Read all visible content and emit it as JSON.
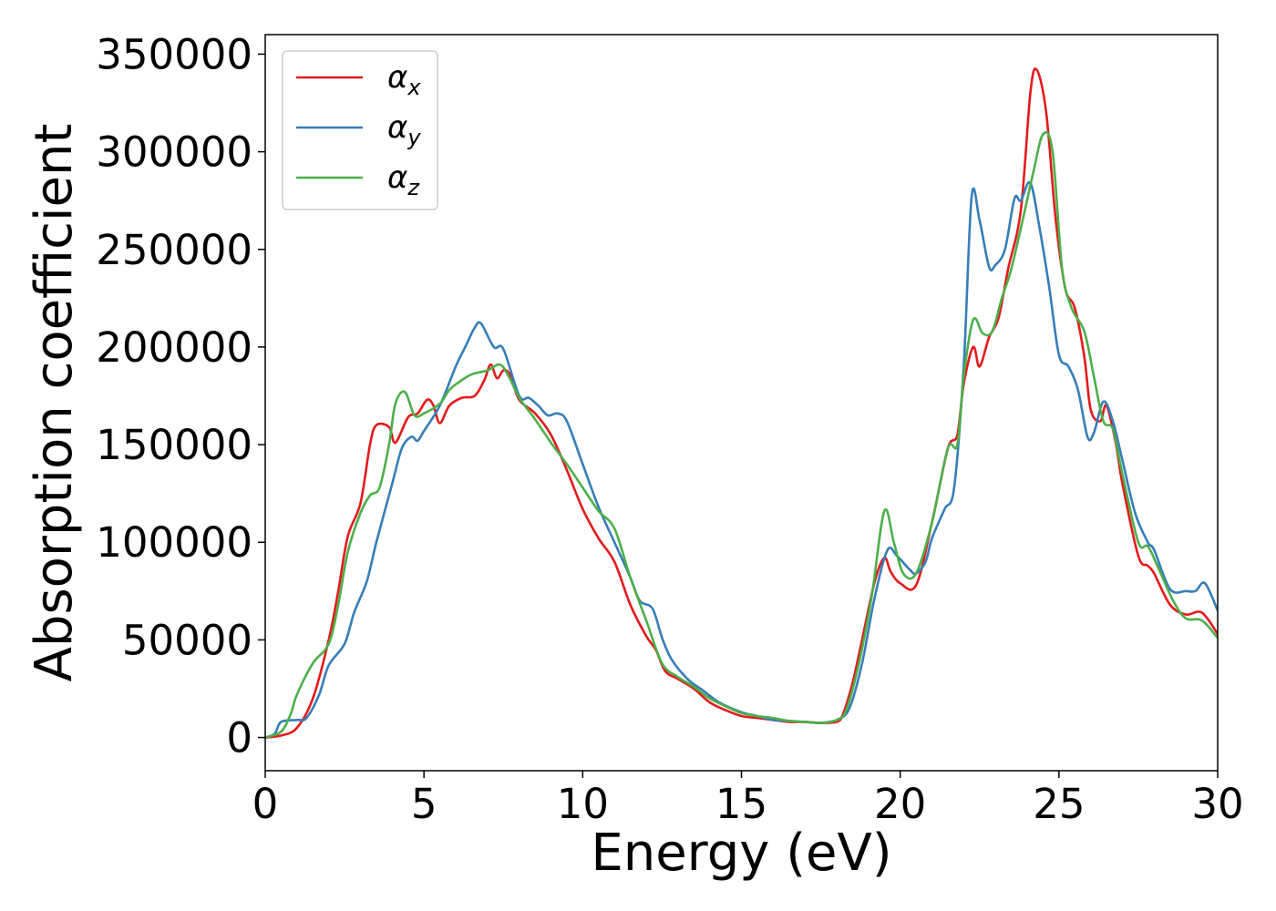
{
  "chart_data": {
    "type": "line",
    "title": "",
    "xlabel": "Energy (eV)",
    "ylabel": "Absorption coefficient",
    "xlim": [
      0,
      30
    ],
    "ylim": [
      -17000,
      360000
    ],
    "xticks": [
      0,
      5,
      10,
      15,
      20,
      25,
      30
    ],
    "yticks": [
      0,
      50000,
      100000,
      150000,
      200000,
      250000,
      300000,
      350000
    ],
    "grid": false,
    "legend_position": "top-left",
    "series": [
      {
        "name": "α",
        "subscript": "x",
        "color": "#e41a1c",
        "points": [
          [
            0,
            0
          ],
          [
            0.5,
            1000
          ],
          [
            1,
            5000
          ],
          [
            1.5,
            20000
          ],
          [
            2,
            50000
          ],
          [
            2.3,
            75000
          ],
          [
            2.6,
            103000
          ],
          [
            3,
            120000
          ],
          [
            3.3,
            150000
          ],
          [
            3.5,
            160000
          ],
          [
            3.9,
            159000
          ],
          [
            4.1,
            151000
          ],
          [
            4.5,
            164000
          ],
          [
            4.8,
            166000
          ],
          [
            5.1,
            173000
          ],
          [
            5.3,
            170000
          ],
          [
            5.5,
            161000
          ],
          [
            5.8,
            170000
          ],
          [
            6.2,
            174000
          ],
          [
            6.6,
            175000
          ],
          [
            6.9,
            183000
          ],
          [
            7.1,
            191000
          ],
          [
            7.3,
            184000
          ],
          [
            7.5,
            188000
          ],
          [
            7.7,
            186000
          ],
          [
            8,
            173000
          ],
          [
            8.5,
            166000
          ],
          [
            9,
            155000
          ],
          [
            9.5,
            137000
          ],
          [
            10,
            117000
          ],
          [
            10.5,
            102000
          ],
          [
            11,
            90000
          ],
          [
            11.5,
            68000
          ],
          [
            12,
            52000
          ],
          [
            12.3,
            45000
          ],
          [
            12.6,
            34000
          ],
          [
            13,
            30000
          ],
          [
            13.5,
            25000
          ],
          [
            14,
            18000
          ],
          [
            14.5,
            14000
          ],
          [
            15,
            11000
          ],
          [
            15.5,
            10000
          ],
          [
            16,
            9000
          ],
          [
            16.5,
            8000
          ],
          [
            17,
            8000
          ],
          [
            17.5,
            7500
          ],
          [
            18,
            8000
          ],
          [
            18.2,
            12000
          ],
          [
            18.5,
            28000
          ],
          [
            18.8,
            50000
          ],
          [
            19.2,
            80000
          ],
          [
            19.5,
            92000
          ],
          [
            19.7,
            85000
          ],
          [
            20,
            79000
          ],
          [
            20.5,
            78000
          ],
          [
            21,
            110000
          ],
          [
            21.5,
            148000
          ],
          [
            21.8,
            155000
          ],
          [
            22,
            181000
          ],
          [
            22.3,
            200000
          ],
          [
            22.5,
            190000
          ],
          [
            22.8,
            205000
          ],
          [
            23.1,
            215000
          ],
          [
            23.4,
            240000
          ],
          [
            23.8,
            270000
          ],
          [
            24.1,
            330000
          ],
          [
            24.3,
            342000
          ],
          [
            24.6,
            320000
          ],
          [
            24.9,
            265000
          ],
          [
            25.2,
            230000
          ],
          [
            25.5,
            220000
          ],
          [
            25.8,
            195000
          ],
          [
            26,
            168000
          ],
          [
            26.3,
            162000
          ],
          [
            26.5,
            170000
          ],
          [
            26.8,
            150000
          ],
          [
            27,
            130000
          ],
          [
            27.5,
            93000
          ],
          [
            27.8,
            88000
          ],
          [
            28,
            84000
          ],
          [
            28.5,
            68000
          ],
          [
            29,
            63000
          ],
          [
            29.5,
            64000
          ],
          [
            30,
            53000
          ]
        ]
      },
      {
        "name": "α",
        "subscript": "y",
        "color": "#377eb8",
        "points": [
          [
            0,
            0
          ],
          [
            0.3,
            2000
          ],
          [
            0.5,
            8000
          ],
          [
            1,
            9000
          ],
          [
            1.3,
            10000
          ],
          [
            1.7,
            22000
          ],
          [
            2,
            37000
          ],
          [
            2.5,
            48000
          ],
          [
            2.8,
            64000
          ],
          [
            3.2,
            80000
          ],
          [
            3.5,
            100000
          ],
          [
            4,
            130000
          ],
          [
            4.3,
            148000
          ],
          [
            4.6,
            154000
          ],
          [
            4.8,
            152000
          ],
          [
            5,
            157000
          ],
          [
            5.5,
            170000
          ],
          [
            6,
            190000
          ],
          [
            6.3,
            200000
          ],
          [
            6.6,
            210000
          ],
          [
            6.8,
            212000
          ],
          [
            7.2,
            200000
          ],
          [
            7.5,
            199000
          ],
          [
            8,
            175000
          ],
          [
            8.3,
            174000
          ],
          [
            8.6,
            170000
          ],
          [
            8.9,
            165000
          ],
          [
            9.2,
            166000
          ],
          [
            9.5,
            162000
          ],
          [
            10,
            140000
          ],
          [
            10.5,
            118000
          ],
          [
            11,
            100000
          ],
          [
            11.5,
            82000
          ],
          [
            11.8,
            70000
          ],
          [
            12.2,
            66000
          ],
          [
            12.5,
            51000
          ],
          [
            12.8,
            40000
          ],
          [
            13.3,
            30000
          ],
          [
            13.8,
            24000
          ],
          [
            14.3,
            18000
          ],
          [
            15,
            13000
          ],
          [
            15.5,
            11000
          ],
          [
            16,
            9000
          ],
          [
            16.5,
            8500
          ],
          [
            17,
            8000
          ],
          [
            17.5,
            7500
          ],
          [
            18,
            9000
          ],
          [
            18.4,
            15000
          ],
          [
            18.8,
            38000
          ],
          [
            19.2,
            72000
          ],
          [
            19.6,
            96000
          ],
          [
            19.9,
            93000
          ],
          [
            20.3,
            86000
          ],
          [
            20.5,
            84000
          ],
          [
            20.8,
            90000
          ],
          [
            21,
            102000
          ],
          [
            21.4,
            117000
          ],
          [
            21.7,
            128000
          ],
          [
            22,
            190000
          ],
          [
            22.25,
            277000
          ],
          [
            22.5,
            265000
          ],
          [
            22.8,
            241000
          ],
          [
            23,
            242000
          ],
          [
            23.3,
            250000
          ],
          [
            23.6,
            276000
          ],
          [
            23.8,
            275000
          ],
          [
            24.1,
            284000
          ],
          [
            24.4,
            260000
          ],
          [
            24.7,
            230000
          ],
          [
            25,
            196000
          ],
          [
            25.3,
            190000
          ],
          [
            25.6,
            178000
          ],
          [
            25.9,
            154000
          ],
          [
            26.1,
            156000
          ],
          [
            26.4,
            172000
          ],
          [
            26.7,
            162000
          ],
          [
            27,
            142000
          ],
          [
            27.4,
            115000
          ],
          [
            27.8,
            100000
          ],
          [
            28,
            96000
          ],
          [
            28.5,
            76000
          ],
          [
            29,
            75000
          ],
          [
            29.3,
            75000
          ],
          [
            29.6,
            79000
          ],
          [
            30,
            65000
          ]
        ]
      },
      {
        "name": "α",
        "subscript": "z",
        "color": "#4daf4a",
        "points": [
          [
            0,
            0
          ],
          [
            0.5,
            3000
          ],
          [
            0.8,
            12000
          ],
          [
            1,
            22000
          ],
          [
            1.5,
            38000
          ],
          [
            2,
            48000
          ],
          [
            2.3,
            68000
          ],
          [
            2.6,
            95000
          ],
          [
            3,
            115000
          ],
          [
            3.3,
            124000
          ],
          [
            3.6,
            128000
          ],
          [
            3.9,
            150000
          ],
          [
            4.1,
            171000
          ],
          [
            4.4,
            177000
          ],
          [
            4.7,
            165000
          ],
          [
            5,
            166000
          ],
          [
            5.5,
            171000
          ],
          [
            5.8,
            178000
          ],
          [
            6.1,
            182000
          ],
          [
            6.5,
            186000
          ],
          [
            7,
            188000
          ],
          [
            7.4,
            191000
          ],
          [
            7.7,
            184000
          ],
          [
            8,
            174000
          ],
          [
            8.5,
            163000
          ],
          [
            9,
            151000
          ],
          [
            9.5,
            140000
          ],
          [
            10,
            128000
          ],
          [
            10.5,
            116000
          ],
          [
            11,
            107000
          ],
          [
            11.5,
            82000
          ],
          [
            12,
            60000
          ],
          [
            12.5,
            38000
          ],
          [
            13,
            31000
          ],
          [
            13.5,
            26000
          ],
          [
            14,
            20000
          ],
          [
            14.5,
            16000
          ],
          [
            15,
            12500
          ],
          [
            15.5,
            11000
          ],
          [
            16,
            10000
          ],
          [
            16.5,
            8500
          ],
          [
            17,
            8000
          ],
          [
            17.5,
            7500
          ],
          [
            18,
            9000
          ],
          [
            18.3,
            14000
          ],
          [
            18.7,
            38000
          ],
          [
            19.1,
            72000
          ],
          [
            19.5,
            116000
          ],
          [
            19.8,
            100000
          ],
          [
            20.1,
            84000
          ],
          [
            20.5,
            84000
          ],
          [
            21,
            110000
          ],
          [
            21.5,
            148000
          ],
          [
            21.8,
            150000
          ],
          [
            22,
            185000
          ],
          [
            22.3,
            214000
          ],
          [
            22.6,
            207000
          ],
          [
            22.9,
            208000
          ],
          [
            23.2,
            225000
          ],
          [
            23.5,
            240000
          ],
          [
            23.9,
            268000
          ],
          [
            24.2,
            290000
          ],
          [
            24.5,
            309000
          ],
          [
            24.8,
            300000
          ],
          [
            25.1,
            240000
          ],
          [
            25.4,
            220000
          ],
          [
            25.8,
            208000
          ],
          [
            26.1,
            185000
          ],
          [
            26.4,
            162000
          ],
          [
            26.7,
            158000
          ],
          [
            27,
            135000
          ],
          [
            27.5,
            100000
          ],
          [
            27.8,
            98000
          ],
          [
            28.1,
            88000
          ],
          [
            28.6,
            70000
          ],
          [
            29,
            61000
          ],
          [
            29.5,
            60000
          ],
          [
            30,
            51000
          ]
        ]
      }
    ]
  }
}
